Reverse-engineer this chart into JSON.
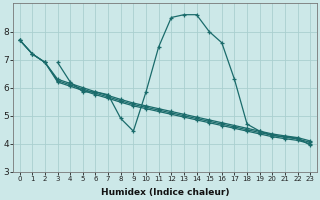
{
  "xlabel": "Humidex (Indice chaleur)",
  "background_color": "#cce8e8",
  "grid_color": "#aacfcf",
  "line_color": "#1a6b6b",
  "marker": "+",
  "xlim": [
    -0.5,
    23.5
  ],
  "ylim": [
    3,
    9
  ],
  "yticks": [
    3,
    4,
    5,
    6,
    7,
    8
  ],
  "xticks": [
    0,
    1,
    2,
    3,
    4,
    5,
    6,
    7,
    8,
    9,
    10,
    11,
    12,
    13,
    14,
    15,
    16,
    17,
    18,
    19,
    20,
    21,
    22,
    23
  ],
  "series": [
    {
      "x": [
        0,
        1,
        2,
        3,
        4,
        5,
        6,
        7,
        8,
        9,
        10,
        11,
        12,
        13,
        14,
        15,
        16,
        17,
        18,
        19,
        20,
        21,
        22,
        23
      ],
      "y": [
        7.7,
        7.2,
        6.9,
        6.3,
        6.15,
        6.0,
        5.85,
        5.72,
        5.58,
        5.45,
        5.35,
        5.25,
        5.15,
        5.05,
        4.95,
        4.85,
        4.75,
        4.65,
        4.55,
        4.45,
        4.35,
        4.28,
        4.22,
        4.1
      ]
    },
    {
      "x": [
        0,
        1,
        2,
        3,
        4,
        5,
        6,
        7,
        8,
        9,
        10,
        11,
        12,
        13,
        14,
        15,
        16,
        17,
        18,
        19,
        20,
        21,
        22,
        23
      ],
      "y": [
        7.7,
        7.2,
        6.9,
        6.25,
        6.1,
        5.95,
        5.8,
        5.67,
        5.53,
        5.4,
        5.3,
        5.2,
        5.1,
        5.0,
        4.9,
        4.8,
        4.7,
        4.6,
        4.5,
        4.4,
        4.3,
        4.23,
        4.17,
        4.05
      ]
    },
    {
      "x": [
        0,
        1,
        2,
        3,
        4,
        5,
        6,
        7,
        8,
        9,
        10,
        11,
        12,
        13,
        14,
        15,
        16,
        17,
        18,
        19,
        20,
        21,
        22,
        23
      ],
      "y": [
        7.7,
        7.2,
        6.9,
        6.2,
        6.05,
        5.9,
        5.75,
        5.62,
        5.48,
        5.35,
        5.25,
        5.15,
        5.05,
        4.95,
        4.85,
        4.75,
        4.65,
        4.55,
        4.45,
        4.35,
        4.25,
        4.18,
        4.12,
        4.0
      ]
    },
    {
      "x": [
        3,
        4,
        5,
        6,
        7,
        8,
        9,
        10,
        11,
        12,
        13,
        14,
        15,
        16,
        17,
        18,
        19,
        20,
        21,
        22,
        23
      ],
      "y": [
        6.9,
        6.2,
        5.85,
        5.85,
        5.75,
        4.9,
        4.45,
        5.85,
        7.45,
        8.5,
        8.6,
        8.6,
        8.0,
        7.6,
        6.3,
        4.7,
        4.45,
        4.3,
        4.25,
        4.2,
        3.95
      ]
    }
  ]
}
